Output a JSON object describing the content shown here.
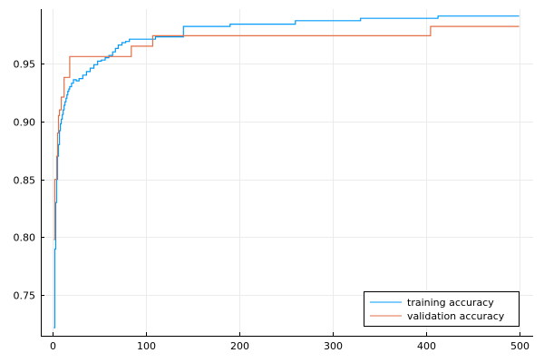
{
  "chart_data": {
    "type": "line",
    "xlim": [
      -13,
      515
    ],
    "ylim": [
      0.715,
      0.997
    ],
    "x_ticks": [
      0,
      100,
      200,
      300,
      400,
      500
    ],
    "y_ticks": [
      0.75,
      0.8,
      0.85,
      0.9,
      0.95
    ],
    "x_tick_labels": [
      "0",
      "100",
      "200",
      "300",
      "400",
      "500"
    ],
    "y_tick_labels": [
      "0.75",
      "0.80",
      "0.85",
      "0.90",
      "0.95"
    ],
    "grid": true,
    "legend_position": "bottom-right",
    "series": [
      {
        "name": "training accuracy",
        "color": "#009af9",
        "step": true,
        "points": [
          [
            1,
            0.722
          ],
          [
            2,
            0.79
          ],
          [
            3,
            0.83
          ],
          [
            4,
            0.85
          ],
          [
            5,
            0.87
          ],
          [
            6,
            0.88
          ],
          [
            7,
            0.892
          ],
          [
            8,
            0.898
          ],
          [
            9,
            0.902
          ],
          [
            10,
            0.906
          ],
          [
            11,
            0.91
          ],
          [
            12,
            0.914
          ],
          [
            13,
            0.917
          ],
          [
            14,
            0.92
          ],
          [
            15,
            0.923
          ],
          [
            16,
            0.926
          ],
          [
            17,
            0.928
          ],
          [
            18,
            0.93
          ],
          [
            20,
            0.933
          ],
          [
            22,
            0.936
          ],
          [
            25,
            0.935
          ],
          [
            28,
            0.937
          ],
          [
            32,
            0.94
          ],
          [
            36,
            0.943
          ],
          [
            40,
            0.946
          ],
          [
            44,
            0.949
          ],
          [
            48,
            0.952
          ],
          [
            52,
            0.953
          ],
          [
            56,
            0.955
          ],
          [
            60,
            0.957
          ],
          [
            64,
            0.96
          ],
          [
            67,
            0.963
          ],
          [
            70,
            0.966
          ],
          [
            74,
            0.968
          ],
          [
            78,
            0.969
          ],
          [
            82,
            0.971
          ],
          [
            110,
            0.973
          ],
          [
            140,
            0.982
          ],
          [
            190,
            0.984
          ],
          [
            260,
            0.987
          ],
          [
            330,
            0.989
          ],
          [
            413,
            0.991
          ],
          [
            500,
            0.991
          ]
        ]
      },
      {
        "name": "validation accuracy",
        "color": "#e26f46",
        "step": true,
        "points": [
          [
            1,
            0.798
          ],
          [
            2,
            0.85
          ],
          [
            4,
            0.87
          ],
          [
            5,
            0.89
          ],
          [
            6,
            0.905
          ],
          [
            7,
            0.91
          ],
          [
            9,
            0.921
          ],
          [
            12,
            0.938
          ],
          [
            18,
            0.956
          ],
          [
            84,
            0.965
          ],
          [
            107,
            0.974
          ],
          [
            405,
            0.982
          ],
          [
            500,
            0.982
          ]
        ]
      }
    ]
  }
}
